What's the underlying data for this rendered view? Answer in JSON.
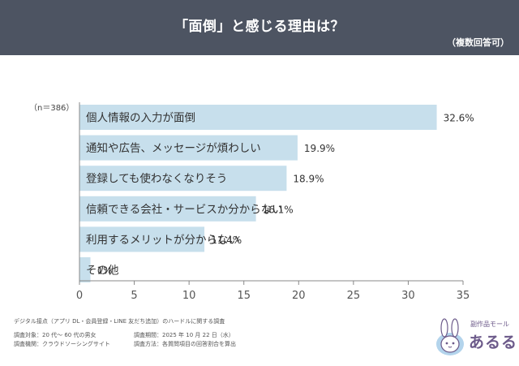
{
  "header": {
    "title": "「面倒」と感じる理由は？",
    "subtitle": "（複数回答可）"
  },
  "chart_data": {
    "type": "bar",
    "orientation": "horizontal",
    "sample_note": "（n＝386）",
    "categories": [
      "個人情報の入力が面倒",
      "通知や広告、メッセージが煩わしい",
      "登録しても使わなくなりそう",
      "信頼できる会社・サービスか分からない",
      "利用するメリットが分からない",
      "その他"
    ],
    "values": [
      32.6,
      19.9,
      18.9,
      16.1,
      11.4,
      1
    ],
    "value_labels": [
      "32.6%",
      "19.9%",
      "18.9%",
      "16.1%",
      "11.4%",
      "1%"
    ],
    "xlim": [
      0,
      35
    ],
    "xticks": [
      0,
      5,
      10,
      15,
      20,
      25,
      30,
      35
    ],
    "bar_color": "#c7dfec",
    "legend": "none"
  },
  "footer": {
    "line1": "デジタル接点（アプリ DL・会員登録・LINE 友だち追加）のハードルに関する調査",
    "target": "調査対象：20 代～ 60 代の男女",
    "period": "調査期間：2025 年 10 月 22 日（水）",
    "org": "調査機関：クラウドソーシングサイト",
    "method": "調査方法：各質問項目の回答割合を算出"
  },
  "logo": {
    "small": "副作品モール",
    "main": "あるる"
  }
}
